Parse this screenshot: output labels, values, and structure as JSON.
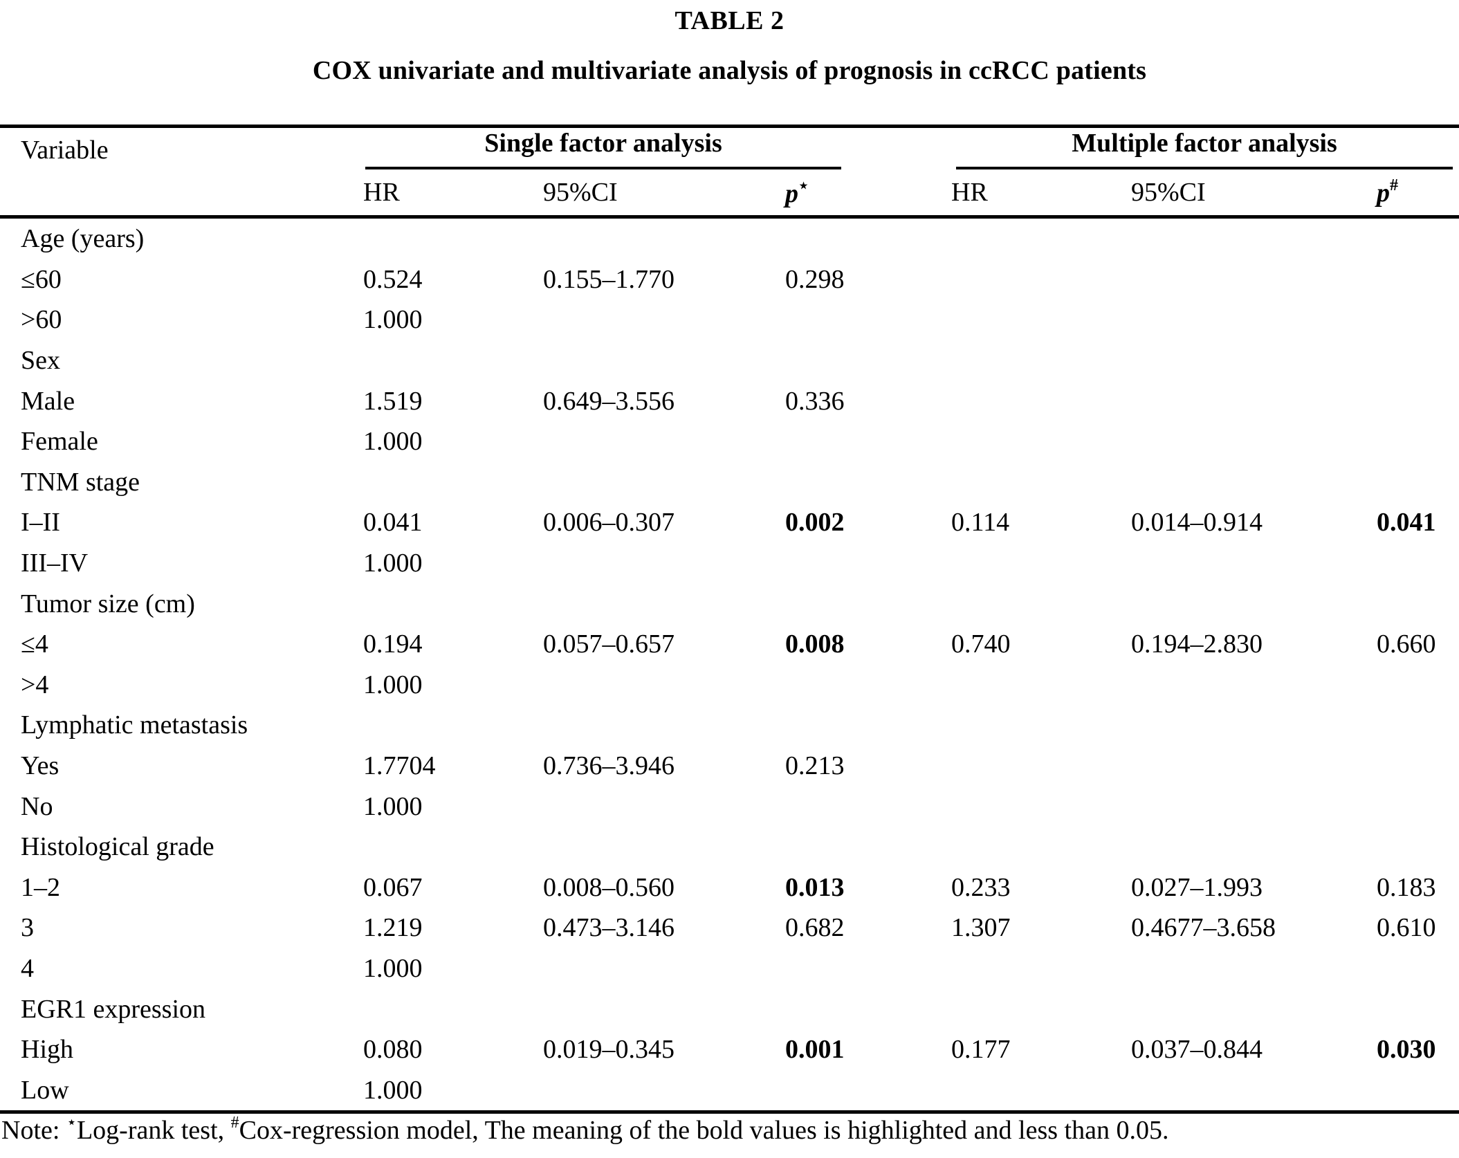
{
  "title": "TABLE 2",
  "subtitle": "COX univariate and multivariate analysis of prognosis in ccRCC patients",
  "header": {
    "variable": "Variable",
    "single": {
      "label": "Single factor analysis",
      "hr": "HR",
      "ci": "95%CI",
      "p": "p",
      "p_sup": "⋆"
    },
    "multiple": {
      "label": "Multiple factor analysis",
      "hr": "HR",
      "ci": "95%CI",
      "p": "p",
      "p_sup": "#"
    }
  },
  "rows": [
    {
      "label": "Age (years)"
    },
    {
      "label": "≤60",
      "hr1": "0.524",
      "ci1": "0.155–1.770",
      "p1": "0.298"
    },
    {
      "label": ">60",
      "hr1": "1.000"
    },
    {
      "label": "Sex"
    },
    {
      "label": "Male",
      "hr1": "1.519",
      "ci1": "0.649–3.556",
      "p1": "0.336"
    },
    {
      "label": "Female",
      "hr1": "1.000"
    },
    {
      "label": "TNM stage"
    },
    {
      "label": "I–II",
      "hr1": "0.041",
      "ci1": "0.006–0.307",
      "p1": "0.002",
      "p1_bold": true,
      "hr2": "0.114",
      "ci2": "0.014–0.914",
      "p2": "0.041",
      "p2_bold": true
    },
    {
      "label": "III–IV",
      "hr1": "1.000"
    },
    {
      "label": "Tumor size (cm)"
    },
    {
      "label": "≤4",
      "hr1": "0.194",
      "ci1": "0.057–0.657",
      "p1": "0.008",
      "p1_bold": true,
      "hr2": "0.740",
      "ci2": "0.194–2.830",
      "p2": "0.660"
    },
    {
      "label": ">4",
      "hr1": "1.000"
    },
    {
      "label": "Lymphatic metastasis"
    },
    {
      "label": "Yes",
      "hr1": "1.7704",
      "ci1": "0.736–3.946",
      "p1": "0.213"
    },
    {
      "label": "No",
      "hr1": "1.000"
    },
    {
      "label": "Histological grade"
    },
    {
      "label": "1–2",
      "hr1": "0.067",
      "ci1": "0.008–0.560",
      "p1": "0.013",
      "p1_bold": true,
      "hr2": "0.233",
      "ci2": "0.027–1.993",
      "p2": "0.183"
    },
    {
      "label": "3",
      "hr1": "1.219",
      "ci1": "0.473–3.146",
      "p1": "0.682",
      "hr2": "1.307",
      "ci2": "0.4677–3.658",
      "p2": "0.610"
    },
    {
      "label": "4",
      "hr1": "1.000"
    },
    {
      "label": "EGR1 expression"
    },
    {
      "label": "High",
      "hr1": "0.080",
      "ci1": "0.019–0.345",
      "p1": "0.001",
      "p1_bold": true,
      "hr2": "0.177",
      "ci2": "0.037–0.844",
      "p2": "0.030",
      "p2_bold": true
    },
    {
      "label": "Low",
      "hr1": "1.000"
    }
  ],
  "note": {
    "prefix": "Note: ",
    "star_sup": "⋆",
    "star_text": "Log-rank test, ",
    "hash_sup": "#",
    "hash_text": "Cox-regression model, The meaning of the bold values is highlighted and less than 0.05."
  }
}
